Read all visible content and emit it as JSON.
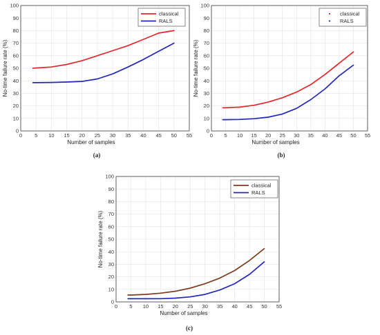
{
  "chart_data": [
    {
      "type": "line",
      "xlabel": "Number of samples",
      "ylabel": "No-time failure rate (%)",
      "xlim": [
        0,
        55
      ],
      "ylim": [
        0,
        100
      ],
      "xticks": [
        "0",
        "5",
        "10",
        "15",
        "20",
        "25",
        "30",
        "35",
        "40",
        "45",
        "50",
        "55"
      ],
      "yticks": [
        "0",
        "10",
        "20",
        "30",
        "40",
        "50",
        "60",
        "70",
        "80",
        "90",
        "100"
      ],
      "grid": true,
      "legend_position": "top-right",
      "caption": "(a)",
      "series": [
        {
          "name": "classical",
          "color": "#e3242b",
          "style": "line",
          "x": [
            4,
            5,
            10,
            15,
            20,
            25,
            30,
            35,
            40,
            45,
            50
          ],
          "y": [
            50,
            50.2,
            51,
            53,
            56,
            60,
            64,
            68,
            73,
            78,
            80
          ]
        },
        {
          "name": "RALS",
          "color": "#2226b8",
          "style": "line",
          "x": [
            4,
            5,
            10,
            15,
            20,
            25,
            30,
            35,
            40,
            45,
            50
          ],
          "y": [
            38.5,
            38.5,
            38.7,
            39,
            39.5,
            41.5,
            45.5,
            51,
            57,
            63.5,
            70
          ]
        }
      ]
    },
    {
      "type": "line",
      "xlabel": "Number of samples",
      "ylabel": "No-time failure rate (%)",
      "xlim": [
        0,
        55
      ],
      "ylim": [
        0,
        100
      ],
      "xticks": [
        "0",
        "5",
        "10",
        "15",
        "20",
        "25",
        "30",
        "35",
        "40",
        "45",
        "50",
        "55"
      ],
      "yticks": [
        "0",
        "10",
        "20",
        "30",
        "40",
        "50",
        "60",
        "70",
        "80",
        "90",
        "100"
      ],
      "grid": true,
      "legend_position": "top-right",
      "caption": "(b)",
      "series": [
        {
          "name": "classical",
          "color": "#e3242b",
          "style": "dot",
          "x": [
            4,
            5,
            10,
            15,
            20,
            25,
            30,
            35,
            40,
            45,
            50
          ],
          "y": [
            18.5,
            18.5,
            19,
            20.5,
            23,
            26.5,
            31,
            37,
            45,
            54,
            63
          ]
        },
        {
          "name": "RALS",
          "color": "#2226b8",
          "style": "dot",
          "x": [
            4,
            5,
            10,
            15,
            20,
            25,
            30,
            35,
            40,
            45,
            50
          ],
          "y": [
            9,
            9,
            9.2,
            9.8,
            11,
            13.5,
            18,
            25,
            33.5,
            44,
            52.5
          ]
        }
      ]
    },
    {
      "type": "line",
      "xlabel": "Number of samples",
      "ylabel": "No-time failure rate (%)",
      "xlim": [
        0,
        55
      ],
      "ylim": [
        0,
        100
      ],
      "xticks": [
        "0",
        "5",
        "10",
        "15",
        "20",
        "25",
        "30",
        "35",
        "40",
        "45",
        "50",
        "55"
      ],
      "yticks": [
        "0",
        "10",
        "20",
        "30",
        "40",
        "50",
        "60",
        "70",
        "80",
        "90",
        "100"
      ],
      "grid": true,
      "legend_position": "top-right",
      "caption": "(c)",
      "series": [
        {
          "name": "classical",
          "color": "#7b3a1e",
          "style": "line",
          "x": [
            4,
            5,
            10,
            15,
            20,
            25,
            30,
            35,
            40,
            45,
            50
          ],
          "y": [
            5.5,
            5.5,
            6,
            7,
            8.5,
            11,
            14.5,
            19,
            25,
            33,
            42.5
          ]
        },
        {
          "name": "RALS",
          "color": "#2226b8",
          "style": "line",
          "x": [
            4,
            5,
            10,
            15,
            20,
            25,
            30,
            35,
            40,
            45,
            50
          ],
          "y": [
            2.5,
            2.5,
            2.5,
            2.6,
            3,
            4,
            6,
            9.5,
            14.5,
            22,
            32
          ]
        }
      ]
    }
  ]
}
